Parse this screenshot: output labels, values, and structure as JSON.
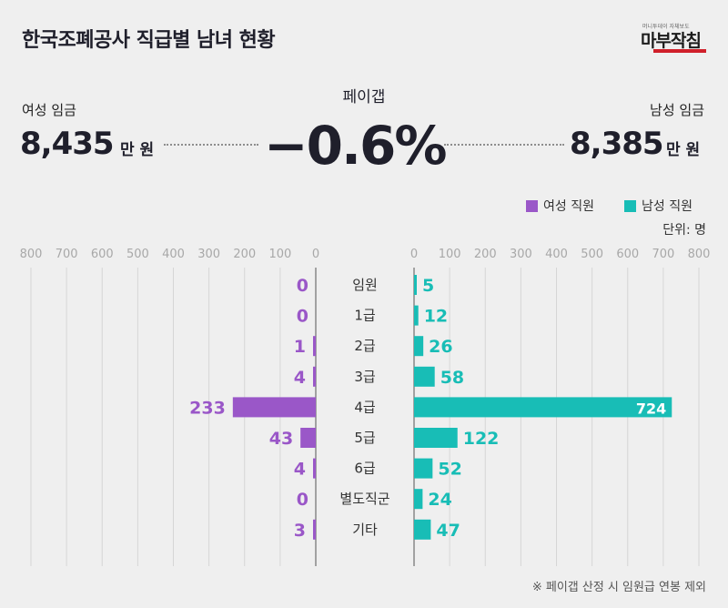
{
  "header": {
    "title": "한국조폐공사 직급별 남녀 현황",
    "logo_text": "머니투데이 자체보도",
    "logo_main": "마부작침"
  },
  "pay": {
    "female_label": "여성 임금",
    "female_value": "8,435",
    "male_label": "남성 임금",
    "male_value": "8,385",
    "unit": "만 원",
    "gap_label": "페이갭",
    "gap_value": "−0.6%"
  },
  "legend": {
    "female": "여성 직원",
    "male": "남성 직원",
    "unit_note": "단위: 명"
  },
  "colors": {
    "female": "#9a57c8",
    "male": "#18bdb6",
    "text_dark": "#1f1f2b",
    "grid": "#d6d6d6"
  },
  "chart_data": {
    "type": "bar",
    "orientation": "horizontal-butterfly",
    "categories": [
      "임원",
      "1급",
      "2급",
      "3급",
      "4급",
      "5급",
      "6급",
      "별도직군",
      "기타"
    ],
    "series": [
      {
        "name": "여성 직원",
        "values": [
          0,
          0,
          1,
          4,
          233,
          43,
          4,
          0,
          3
        ]
      },
      {
        "name": "남성 직원",
        "values": [
          5,
          12,
          26,
          58,
          724,
          122,
          52,
          24,
          47
        ]
      }
    ],
    "female_ticks": [
      "800",
      "700",
      "600",
      "500",
      "400",
      "300",
      "200",
      "100",
      "0"
    ],
    "male_ticks": [
      "0",
      "100",
      "200",
      "300",
      "400",
      "500",
      "600",
      "700",
      "800"
    ],
    "xlim": [
      0,
      800
    ],
    "grid": true
  },
  "footnote": "※ 페이갭 산정 시 임원급 연봉 제외"
}
